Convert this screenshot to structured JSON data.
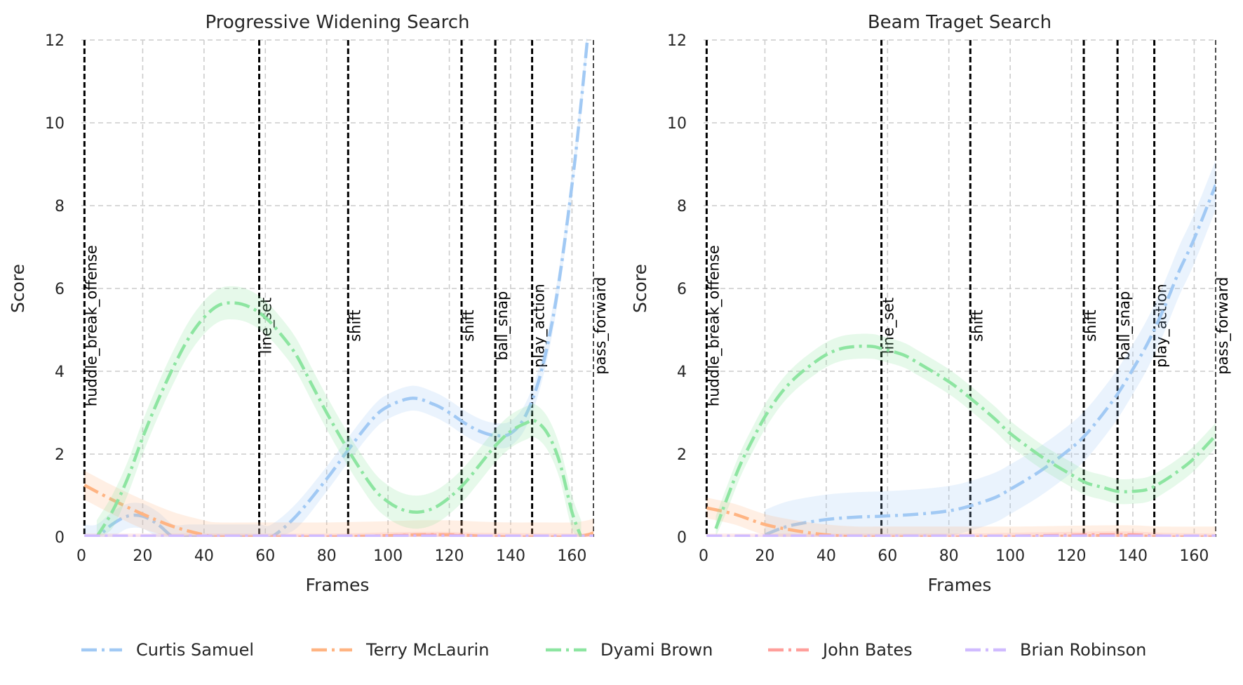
{
  "chart_data": [
    {
      "type": "line",
      "title": "Progressive Widening Search",
      "xlabel": "Frames",
      "ylabel": "Score",
      "xlim": [
        0,
        167
      ],
      "ylim": [
        0,
        12
      ],
      "xticks": [
        "0",
        "20",
        "40",
        "60",
        "80",
        "100",
        "120",
        "140",
        "160"
      ],
      "yticks": [
        "0",
        "2",
        "4",
        "6",
        "8",
        "10",
        "12"
      ],
      "grid": true,
      "events": [
        {
          "frame": 1,
          "label": "huddle_break_offense"
        },
        {
          "frame": 58,
          "label": "line_set"
        },
        {
          "frame": 87,
          "label": "shift"
        },
        {
          "frame": 124,
          "label": "shift"
        },
        {
          "frame": 135,
          "label": "ball_snap"
        },
        {
          "frame": 147,
          "label": "play_action"
        },
        {
          "frame": 167,
          "label": "pass_forward"
        }
      ],
      "series": [
        {
          "name": "Curtis Samuel",
          "band": 0.3,
          "x": [
            1,
            5,
            10,
            15,
            20,
            25,
            30,
            35,
            40,
            50,
            58,
            62,
            70,
            80,
            87,
            95,
            100,
            108,
            115,
            120,
            125,
            130,
            135,
            140,
            145,
            150,
            155,
            160,
            163,
            165
          ],
          "y": [
            0,
            0,
            0.3,
            0.5,
            0.5,
            0.3,
            0,
            0,
            0,
            0,
            0,
            0,
            0.5,
            1.4,
            2.1,
            2.85,
            3.15,
            3.35,
            3.2,
            3.0,
            2.75,
            2.55,
            2.45,
            2.5,
            2.95,
            4.0,
            5.8,
            8.5,
            10.5,
            12
          ]
        },
        {
          "name": "Terry McLaurin",
          "band": 0.35,
          "x": [
            1,
            10,
            20,
            30,
            40,
            45,
            60,
            80,
            100,
            110,
            120,
            130,
            140,
            150,
            160,
            165,
            167
          ],
          "y": [
            1.25,
            0.9,
            0.55,
            0.25,
            0.05,
            0,
            0,
            0,
            0.03,
            0.05,
            0.05,
            0.02,
            0,
            0,
            0,
            0.05,
            0.1
          ]
        },
        {
          "name": "Dyami Brown",
          "band": 0.4,
          "x": [
            5,
            10,
            15,
            20,
            25,
            30,
            35,
            40,
            45,
            50,
            55,
            60,
            65,
            70,
            75,
            80,
            87,
            95,
            100,
            105,
            110,
            115,
            120,
            125,
            130,
            135,
            140,
            145,
            148,
            152,
            156,
            160,
            163
          ],
          "y": [
            0,
            0.6,
            1.4,
            2.4,
            3.3,
            4.1,
            4.8,
            5.3,
            5.6,
            5.65,
            5.55,
            5.3,
            4.9,
            4.4,
            3.7,
            3.0,
            2.1,
            1.2,
            0.85,
            0.65,
            0.6,
            0.7,
            0.95,
            1.3,
            1.75,
            2.2,
            2.55,
            2.75,
            2.8,
            2.5,
            1.8,
            0.6,
            0
          ]
        },
        {
          "name": "John Bates",
          "band": 0.08,
          "x": [
            1,
            40,
            80,
            100,
            110,
            120,
            130,
            167
          ],
          "y": [
            0,
            0,
            0,
            0.03,
            0.04,
            0.04,
            0.02,
            0
          ]
        },
        {
          "name": "Brian Robinson",
          "band": 0.02,
          "x": [
            1,
            167
          ],
          "y": [
            0.02,
            0.02
          ]
        }
      ]
    },
    {
      "type": "line",
      "title": "Beam Traget Search",
      "xlabel": "Frames",
      "ylabel": "Score",
      "xlim": [
        0,
        167
      ],
      "ylim": [
        0,
        12
      ],
      "xticks": [
        "0",
        "20",
        "40",
        "60",
        "80",
        "100",
        "120",
        "140",
        "160"
      ],
      "yticks": [
        "0",
        "2",
        "4",
        "6",
        "8",
        "10",
        "12"
      ],
      "grid": true,
      "events": [
        {
          "frame": 1,
          "label": "huddle_break_offense"
        },
        {
          "frame": 58,
          "label": "line_set"
        },
        {
          "frame": 87,
          "label": "shift"
        },
        {
          "frame": 124,
          "label": "shift"
        },
        {
          "frame": 135,
          "label": "ball_snap"
        },
        {
          "frame": 147,
          "label": "play_action"
        },
        {
          "frame": 167,
          "label": "pass_forward"
        }
      ],
      "series": [
        {
          "name": "Curtis Samuel",
          "band": 0.6,
          "x": [
            20,
            25,
            30,
            40,
            50,
            58,
            70,
            80,
            87,
            95,
            100,
            110,
            120,
            125,
            130,
            135,
            140,
            145,
            150,
            155,
            160,
            167
          ],
          "y": [
            0.05,
            0.2,
            0.3,
            0.42,
            0.48,
            0.5,
            0.55,
            0.63,
            0.75,
            0.95,
            1.15,
            1.6,
            2.15,
            2.5,
            2.95,
            3.45,
            4.05,
            4.7,
            5.5,
            6.4,
            7.2,
            8.5
          ]
        },
        {
          "name": "Terry McLaurin",
          "band": 0.25,
          "x": [
            1,
            10,
            20,
            30,
            40,
            50,
            60,
            100,
            120,
            130,
            140,
            150,
            167
          ],
          "y": [
            0.7,
            0.55,
            0.3,
            0.15,
            0.05,
            0,
            0,
            0,
            0.02,
            0.03,
            0.03,
            0,
            0
          ]
        },
        {
          "name": "Dyami Brown",
          "band": 0.3,
          "x": [
            4,
            8,
            12,
            16,
            20,
            25,
            30,
            35,
            40,
            45,
            50,
            55,
            58,
            65,
            70,
            80,
            87,
            95,
            100,
            110,
            120,
            125,
            130,
            135,
            140,
            145,
            150,
            155,
            160,
            167
          ],
          "y": [
            0.2,
            1.0,
            1.75,
            2.35,
            2.9,
            3.45,
            3.85,
            4.15,
            4.4,
            4.55,
            4.6,
            4.6,
            4.55,
            4.4,
            4.2,
            3.75,
            3.35,
            2.85,
            2.5,
            1.95,
            1.5,
            1.3,
            1.2,
            1.1,
            1.1,
            1.15,
            1.35,
            1.6,
            1.9,
            2.45
          ]
        },
        {
          "name": "John Bates",
          "band": 0.08,
          "x": [
            1,
            80,
            100,
            120,
            130,
            140,
            150,
            167
          ],
          "y": [
            0,
            0,
            0.02,
            0.04,
            0.05,
            0.05,
            0.02,
            0
          ]
        },
        {
          "name": "Brian Robinson",
          "band": 0.02,
          "x": [
            1,
            167
          ],
          "y": [
            0.02,
            0.02
          ]
        }
      ]
    }
  ],
  "legend": {
    "placement": "bottom",
    "entries": [
      {
        "name": "Curtis Samuel",
        "color": "#a1c9f4"
      },
      {
        "name": "Terry McLaurin",
        "color": "#ffb482"
      },
      {
        "name": "Dyami Brown",
        "color": "#8de5a1"
      },
      {
        "name": "John Bates",
        "color": "#ff9f9b"
      },
      {
        "name": "Brian Robinson",
        "color": "#d0bbff"
      }
    ]
  }
}
